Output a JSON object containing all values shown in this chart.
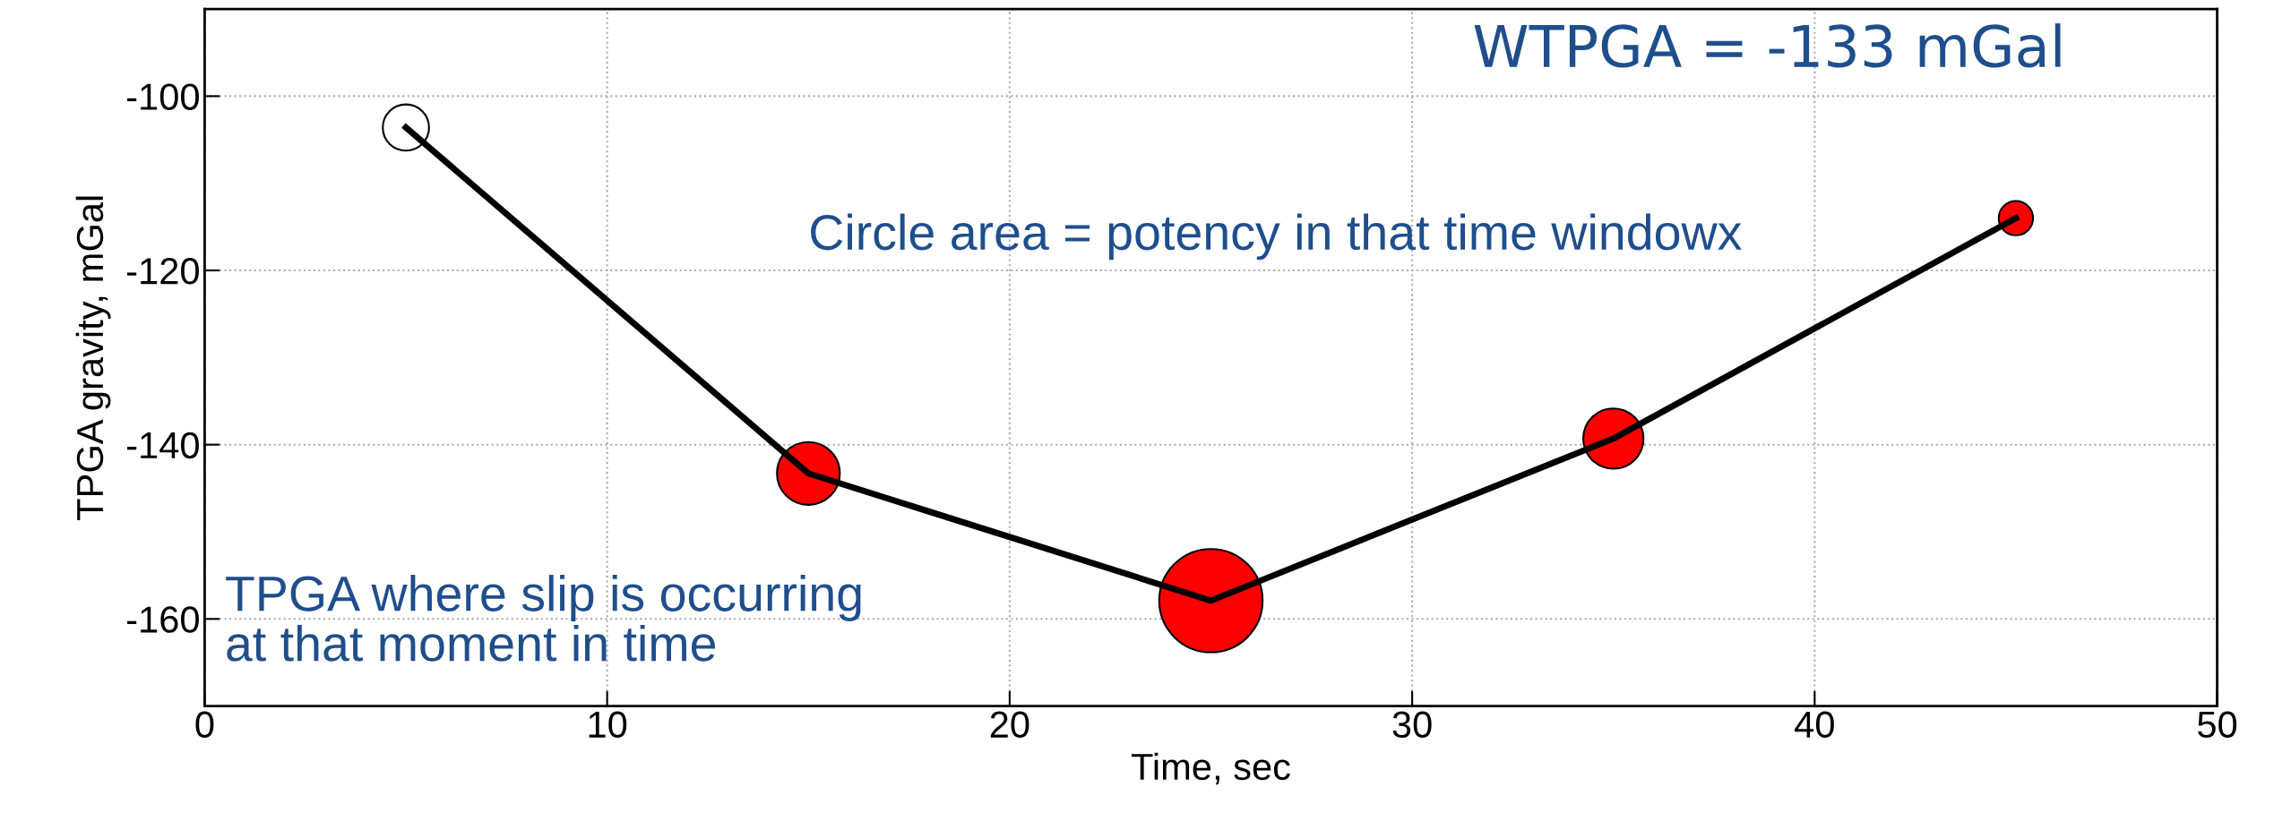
{
  "chart_data": {
    "type": "bubble",
    "xlabel": "Time, sec",
    "ylabel": "TPGA gravity, mGal",
    "x": [
      5,
      15,
      25,
      35,
      45
    ],
    "series": [
      {
        "type": "line",
        "color": "#000000",
        "marker": "none",
        "values": [
          -103.6,
          -143.3,
          -157.9,
          -139.3,
          -114.0
        ]
      },
      {
        "colors": [
          "#ffffff",
          "#ff0000",
          "#ff0000",
          "#ff0000",
          "#ff0000"
        ],
        "values": [
          -103.6,
          -143.3,
          -157.9,
          -139.3,
          -114.0
        ],
        "sizes": [
          0.2,
          0.37,
          1,
          0.34,
          0.11
        ]
      }
    ],
    "xlim": [
      0,
      50
    ],
    "xticks": [
      0,
      10,
      20,
      30,
      40,
      50
    ],
    "ylim": [
      -170,
      -90
    ],
    "yticks": [
      -160,
      -140,
      -120,
      -100
    ],
    "grid": true,
    "marker": "circle",
    "line_style": "solid",
    "annotations": [
      "WTPGA = -133 mGal",
      "Circle area = potency in that time windowx",
      "TPGA where slip is occurring\nat that moment in time"
    ]
  }
}
